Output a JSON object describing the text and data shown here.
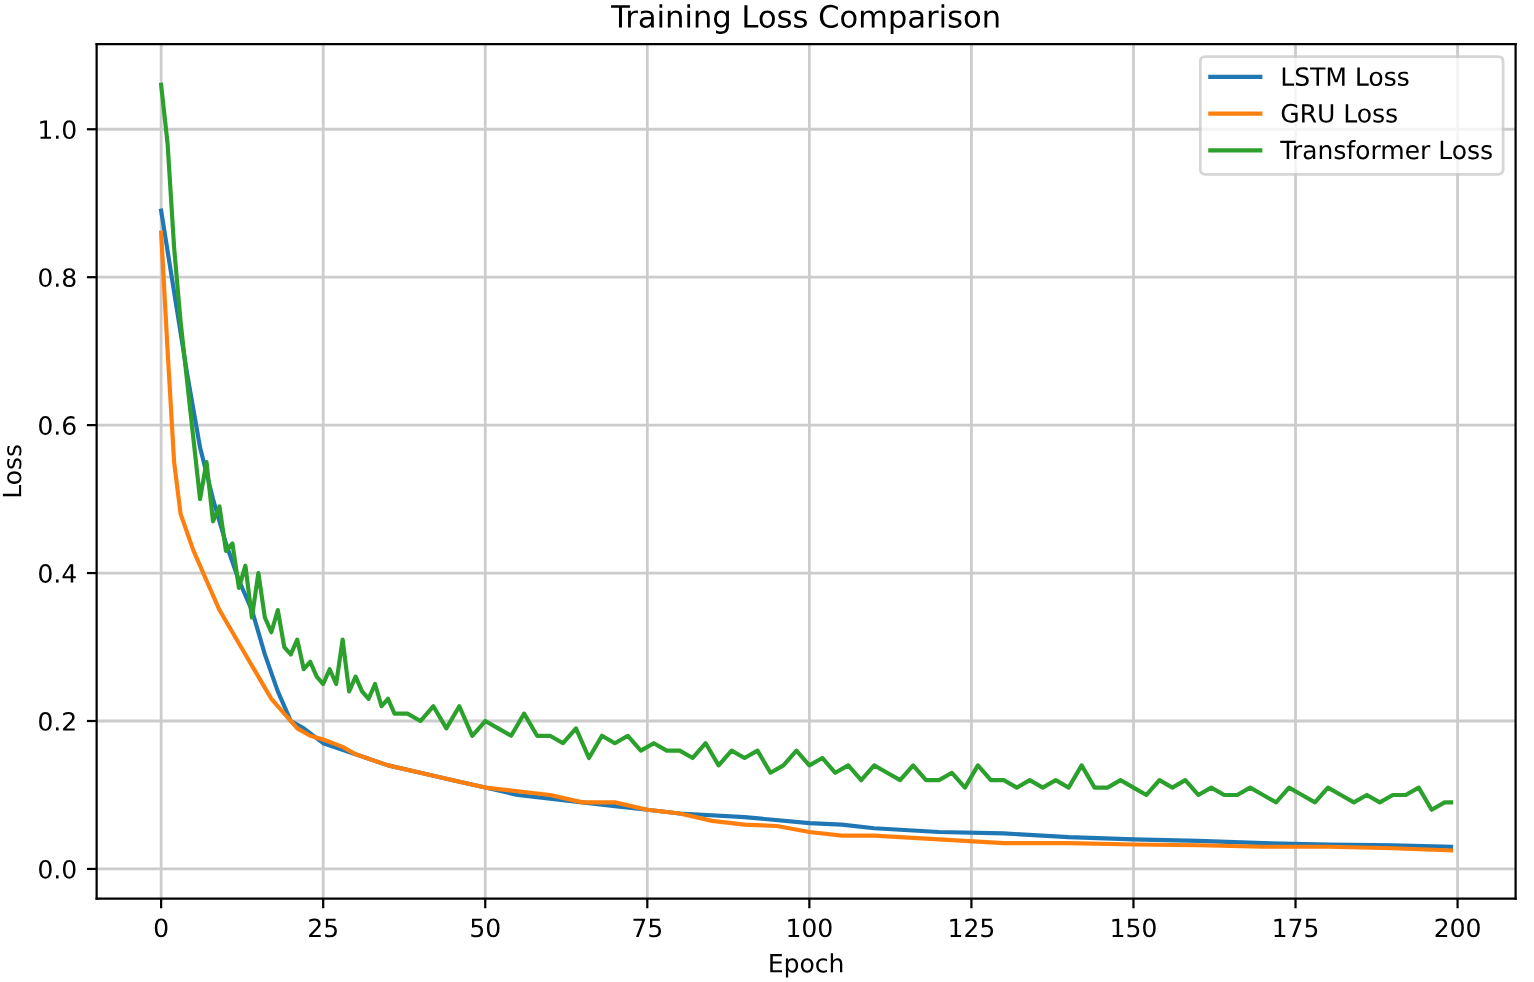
{
  "chart_data": {
    "type": "line",
    "title": "Training Loss Comparison",
    "xlabel": "Epoch",
    "ylabel": "Loss",
    "xlim": [
      -9.95,
      208.95
    ],
    "ylim": [
      -0.04,
      1.115
    ],
    "xticks": [
      0,
      25,
      50,
      75,
      100,
      125,
      150,
      175,
      200
    ],
    "yticks": [
      {
        "value": 0,
        "label": "0.0"
      },
      0.2,
      0.4,
      0.6,
      0.8,
      {
        "value": 1,
        "label": "1.0"
      }
    ],
    "grid": true,
    "legend": "top right",
    "line_style": "solid",
    "series": [
      {
        "name": "LSTM Loss",
        "color": "#1f77b4",
        "x": [
          0,
          2,
          4,
          6,
          8,
          10,
          12,
          14,
          16,
          18,
          20,
          22,
          25,
          30,
          35,
          40,
          45,
          50,
          55,
          60,
          65,
          70,
          75,
          80,
          90,
          100,
          105,
          110,
          120,
          130,
          140,
          150,
          160,
          170,
          180,
          190,
          199
        ],
        "values": [
          0.89,
          0.78,
          0.67,
          0.57,
          0.5,
          0.44,
          0.39,
          0.35,
          0.29,
          0.24,
          0.2,
          0.19,
          0.17,
          0.155,
          0.14,
          0.13,
          0.12,
          0.11,
          0.1,
          0.095,
          0.09,
          0.085,
          0.08,
          0.075,
          0.07,
          0.062,
          0.06,
          0.055,
          0.05,
          0.048,
          0.043,
          0.04,
          0.038,
          0.035,
          0.033,
          0.032,
          0.03
        ]
      },
      {
        "name": "GRU Loss",
        "color": "#ff7f0e",
        "x": [
          0,
          1,
          2,
          3,
          5,
          7,
          9,
          11,
          13,
          15,
          17,
          19,
          21,
          23,
          25,
          28,
          30,
          35,
          40,
          45,
          50,
          55,
          60,
          65,
          70,
          75,
          80,
          85,
          90,
          95,
          100,
          105,
          110,
          120,
          130,
          140,
          150,
          160,
          170,
          180,
          190,
          199
        ],
        "values": [
          0.86,
          0.7,
          0.55,
          0.48,
          0.43,
          0.39,
          0.35,
          0.32,
          0.29,
          0.26,
          0.23,
          0.21,
          0.19,
          0.18,
          0.175,
          0.165,
          0.155,
          0.14,
          0.13,
          0.12,
          0.11,
          0.105,
          0.1,
          0.09,
          0.09,
          0.08,
          0.075,
          0.065,
          0.06,
          0.058,
          0.05,
          0.045,
          0.045,
          0.04,
          0.035,
          0.035,
          0.033,
          0.032,
          0.03,
          0.03,
          0.028,
          0.025
        ]
      },
      {
        "name": "Transformer Loss",
        "color": "#2ca02c",
        "x": [
          0,
          1,
          2,
          3,
          4,
          5,
          6,
          7,
          8,
          9,
          10,
          11,
          12,
          13,
          14,
          15,
          16,
          17,
          18,
          19,
          20,
          21,
          22,
          23,
          24,
          25,
          26,
          27,
          28,
          29,
          30,
          31,
          32,
          33,
          34,
          35,
          36,
          38,
          40,
          42,
          44,
          46,
          48,
          50,
          52,
          54,
          56,
          58,
          60,
          62,
          64,
          66,
          68,
          70,
          72,
          74,
          76,
          78,
          80,
          82,
          84,
          86,
          88,
          90,
          92,
          94,
          96,
          98,
          100,
          102,
          104,
          106,
          108,
          110,
          112,
          114,
          116,
          118,
          120,
          122,
          124,
          126,
          128,
          130,
          132,
          134,
          136,
          138,
          140,
          142,
          144,
          146,
          148,
          150,
          152,
          154,
          156,
          158,
          160,
          162,
          164,
          166,
          168,
          170,
          172,
          174,
          176,
          178,
          180,
          182,
          184,
          186,
          188,
          190,
          192,
          194,
          196,
          198,
          199
        ],
        "values": [
          1.06,
          0.98,
          0.84,
          0.74,
          0.66,
          0.58,
          0.5,
          0.55,
          0.47,
          0.49,
          0.43,
          0.44,
          0.38,
          0.41,
          0.34,
          0.4,
          0.34,
          0.32,
          0.35,
          0.3,
          0.29,
          0.31,
          0.27,
          0.28,
          0.26,
          0.25,
          0.27,
          0.25,
          0.31,
          0.24,
          0.26,
          0.24,
          0.23,
          0.25,
          0.22,
          0.23,
          0.21,
          0.21,
          0.2,
          0.22,
          0.19,
          0.22,
          0.18,
          0.2,
          0.19,
          0.18,
          0.21,
          0.18,
          0.18,
          0.17,
          0.19,
          0.15,
          0.18,
          0.17,
          0.18,
          0.16,
          0.17,
          0.16,
          0.16,
          0.15,
          0.17,
          0.14,
          0.16,
          0.15,
          0.16,
          0.13,
          0.14,
          0.16,
          0.14,
          0.15,
          0.13,
          0.14,
          0.12,
          0.14,
          0.13,
          0.12,
          0.14,
          0.12,
          0.12,
          0.13,
          0.11,
          0.14,
          0.12,
          0.12,
          0.11,
          0.12,
          0.11,
          0.12,
          0.11,
          0.14,
          0.11,
          0.11,
          0.12,
          0.11,
          0.1,
          0.12,
          0.11,
          0.12,
          0.1,
          0.11,
          0.1,
          0.1,
          0.11,
          0.1,
          0.09,
          0.11,
          0.1,
          0.09,
          0.11,
          0.1,
          0.09,
          0.1,
          0.09,
          0.1,
          0.1,
          0.11,
          0.08,
          0.09,
          0.09
        ]
      }
    ]
  }
}
